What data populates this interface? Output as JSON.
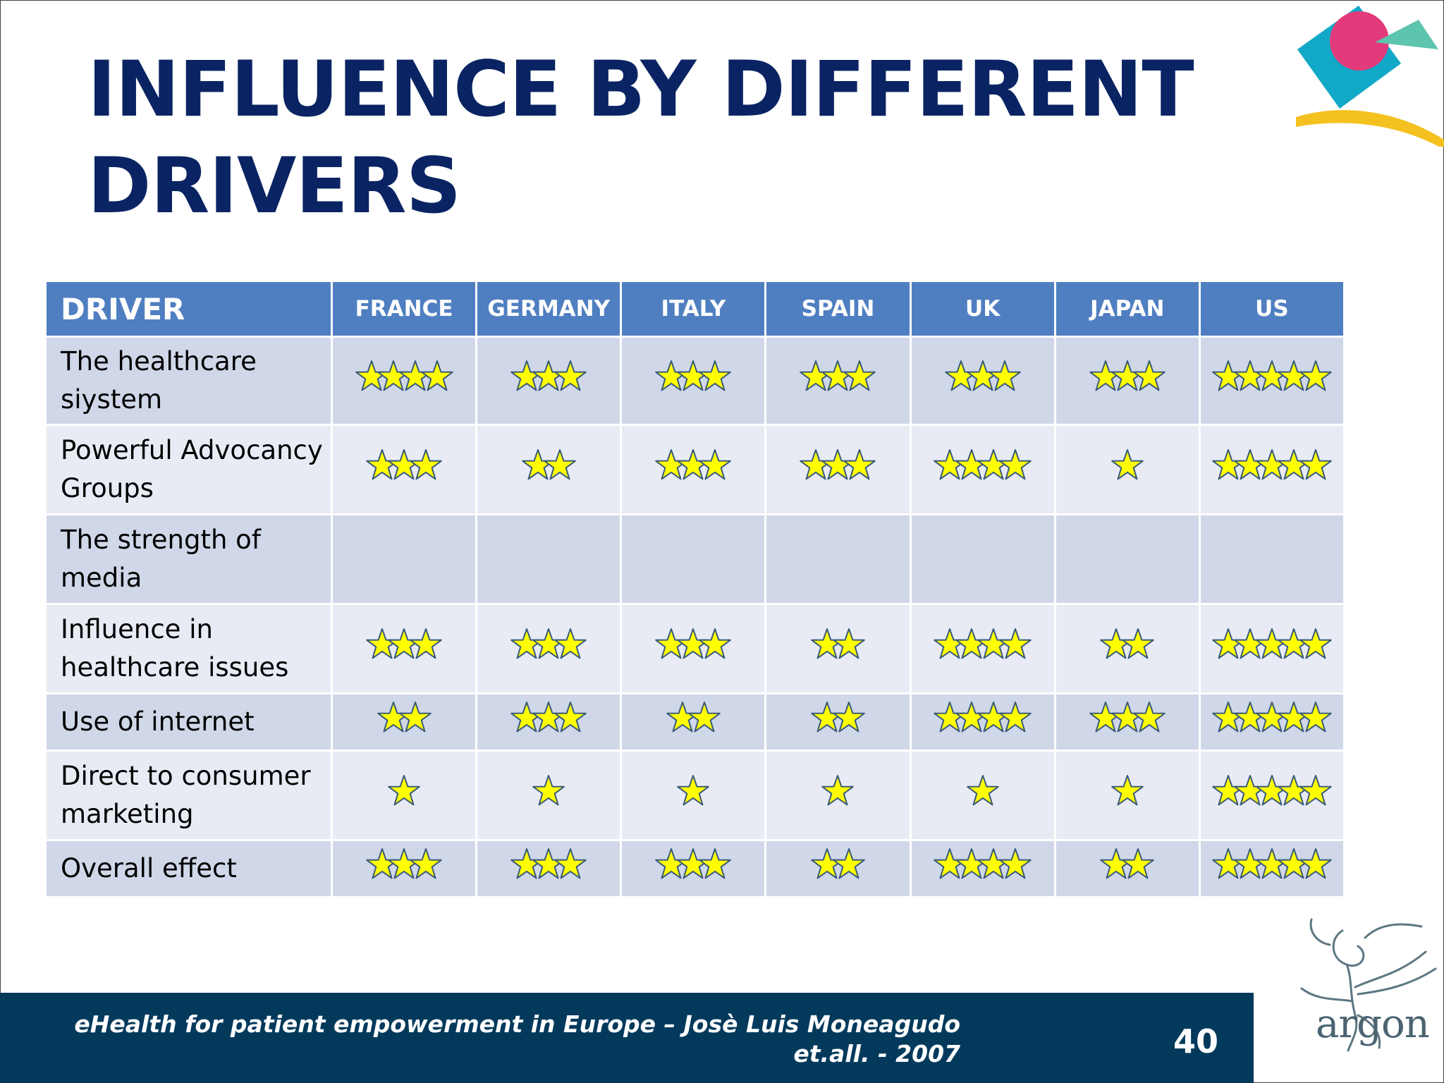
{
  "slide": {
    "title": "INFLUENCE BY DIFFERENT\nDRIVERS",
    "footer_text": "eHealth for patient empowerment in Europe – Josè Luis Moneagudo\net.all. - 2007",
    "page_number": "40",
    "logo_text": "argon"
  },
  "colors": {
    "title": "#0a2463",
    "header_bg": "#4f7fc1",
    "row_dark": "#cfd7e8",
    "row_light": "#e8ebf4",
    "star_fill": "#ffff00",
    "star_stroke": "#3a5a7a",
    "footer_bg": "#033a5c"
  },
  "icons": {
    "corner_logo": "geometric-logo-icon",
    "star": "star-icon",
    "argon_logo": "argon-figure-logo-icon"
  },
  "table": {
    "headers": [
      "DRIVER",
      "FRANCE",
      "GERMANY",
      "ITALY",
      "SPAIN",
      "UK",
      "JAPAN",
      "US"
    ],
    "rows": [
      {
        "driver": "The healthcare siystem",
        "ratings": [
          4,
          3,
          3,
          3,
          3,
          3,
          5
        ]
      },
      {
        "driver": "Powerful Advocancy Groups",
        "ratings": [
          3,
          2,
          3,
          3,
          4,
          1,
          5
        ]
      },
      {
        "driver": "The strength of media",
        "ratings": [
          0,
          0,
          0,
          0,
          0,
          0,
          0
        ]
      },
      {
        "driver": "Influence in healthcare issues",
        "ratings": [
          3,
          3,
          3,
          2,
          4,
          2,
          5
        ]
      },
      {
        "driver": "Use of internet",
        "ratings": [
          2,
          3,
          2,
          2,
          4,
          3,
          5
        ]
      },
      {
        "driver": "Direct to consumer marketing",
        "ratings": [
          1,
          1,
          1,
          1,
          1,
          1,
          5
        ]
      },
      {
        "driver": "Overall effect",
        "ratings": [
          3,
          3,
          3,
          2,
          4,
          2,
          5
        ]
      }
    ]
  }
}
